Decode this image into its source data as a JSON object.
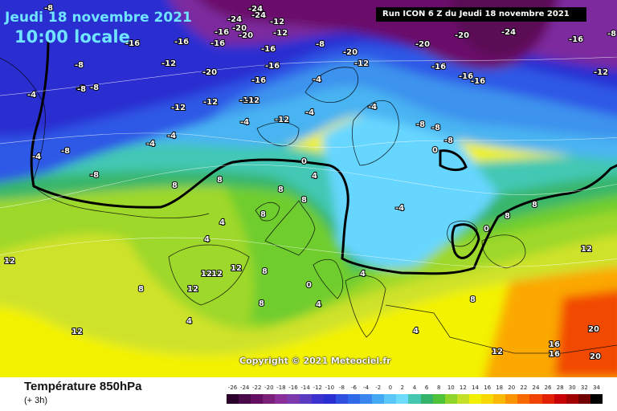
{
  "header": {
    "date": "Jeudi 18 novembre 2021",
    "local_time": "10:00 locale",
    "run_info": "Run ICON 6 Z du Jeudi 18 novembre 2021"
  },
  "footer": {
    "title": "Température 850hPa",
    "step": "(+ 3h)"
  },
  "copyright": "Copyright © 2021 Meteociel.fr",
  "colors": {
    "c_m20": "#6b0f6b",
    "c_m16": "#7b2b9e",
    "c_m12": "#2a2fd1",
    "c_m8": "#2e59e6",
    "c_m4": "#3e93ee",
    "c_m2": "#4ab4f2",
    "c_0": "#66d6ff",
    "c_2": "#42c8b4",
    "c_4": "#38b66a",
    "c_6": "#6fcd2e",
    "c_8": "#9ed82a",
    "c_10": "#cfe22a",
    "c_12": "#f3f200",
    "c_14": "#f8d200",
    "c_16": "#fba800",
    "c_18": "#fb7e00",
    "c_20": "#f24a00"
  },
  "legend": {
    "values": [
      "-26",
      "-24",
      "-22",
      "-20",
      "-18",
      "-16",
      "-14",
      "-12",
      "-10",
      "-8",
      "-6",
      "-4",
      "-2",
      "0",
      "2",
      "4",
      "6",
      "8",
      "10",
      "12",
      "14",
      "16",
      "18",
      "20",
      "22",
      "24",
      "26",
      "28",
      "30",
      "32",
      "34"
    ],
    "colors": [
      "#2b002b",
      "#4a0a4a",
      "#640f64",
      "#7a1f7a",
      "#8a2f9a",
      "#7c3aad",
      "#5a3ac0",
      "#3b31cf",
      "#2a2fd1",
      "#2e4fe0",
      "#2e6ae8",
      "#3a86ee",
      "#44a8f4",
      "#5cc8fa",
      "#6fdcff",
      "#44c6b0",
      "#36b36a",
      "#4fc23a",
      "#8fd42a",
      "#c4df28",
      "#f2f000",
      "#f8d800",
      "#fab800",
      "#fb9200",
      "#f86a00",
      "#f04200",
      "#e02000",
      "#c80000",
      "#a00000",
      "#700000",
      "#000000"
    ]
  },
  "map_labels": [
    {
      "text": "-8"
    },
    {
      "text": "-16"
    },
    {
      "text": "-16"
    },
    {
      "text": "-24"
    },
    {
      "text": "-12"
    },
    {
      "text": "-20"
    },
    {
      "text": "-24"
    },
    {
      "text": "-12"
    },
    {
      "text": "-20"
    },
    {
      "text": "-16"
    },
    {
      "text": "-24"
    },
    {
      "text": "-16"
    },
    {
      "text": "-20"
    },
    {
      "text": "-20"
    },
    {
      "text": "-16"
    },
    {
      "text": "-12"
    },
    {
      "text": "-8"
    },
    {
      "text": "-8"
    },
    {
      "text": "-16"
    },
    {
      "text": "-12"
    },
    {
      "text": "-12"
    },
    {
      "text": "-16"
    },
    {
      "text": "-16"
    },
    {
      "text": "-12"
    },
    {
      "text": "-20"
    },
    {
      "text": "-16"
    },
    {
      "text": "-16"
    },
    {
      "text": "-8"
    },
    {
      "text": "-12"
    },
    {
      "text": "-12"
    },
    {
      "text": "-8"
    },
    {
      "text": "-8"
    },
    {
      "text": "-4"
    },
    {
      "text": "-4"
    },
    {
      "text": "-4"
    },
    {
      "text": "-4"
    },
    {
      "text": "-12"
    },
    {
      "text": "-8"
    },
    {
      "text": "-8"
    },
    {
      "text": "-4"
    },
    {
      "text": "-4"
    },
    {
      "text": "-4"
    },
    {
      "text": "-8"
    },
    {
      "text": "-8"
    },
    {
      "text": "-8"
    },
    {
      "text": "0"
    },
    {
      "text": "0"
    },
    {
      "text": "4"
    },
    {
      "text": "8"
    },
    {
      "text": "8"
    },
    {
      "text": "8"
    },
    {
      "text": "4"
    },
    {
      "text": "12"
    },
    {
      "text": "12"
    },
    {
      "text": "12"
    },
    {
      "text": "12"
    },
    {
      "text": "8"
    },
    {
      "text": "4"
    },
    {
      "text": "4"
    },
    {
      "text": "0"
    },
    {
      "text": "0"
    },
    {
      "text": "12"
    },
    {
      "text": "8"
    },
    {
      "text": "4"
    },
    {
      "text": "8"
    },
    {
      "text": "4"
    },
    {
      "text": "16"
    },
    {
      "text": "16"
    },
    {
      "text": "20"
    },
    {
      "text": "20"
    },
    {
      "text": "12"
    },
    {
      "text": "12"
    },
    {
      "text": "4"
    },
    {
      "text": "8"
    },
    {
      "text": "-20"
    },
    {
      "text": "-24"
    },
    {
      "text": "-16"
    },
    {
      "text": "-12"
    },
    {
      "text": "-8"
    },
    {
      "text": "-4"
    },
    {
      "text": "-4"
    },
    {
      "text": "8"
    },
    {
      "text": "8"
    },
    {
      "text": "8"
    },
    {
      "text": "12"
    },
    {
      "text": "8"
    }
  ]
}
